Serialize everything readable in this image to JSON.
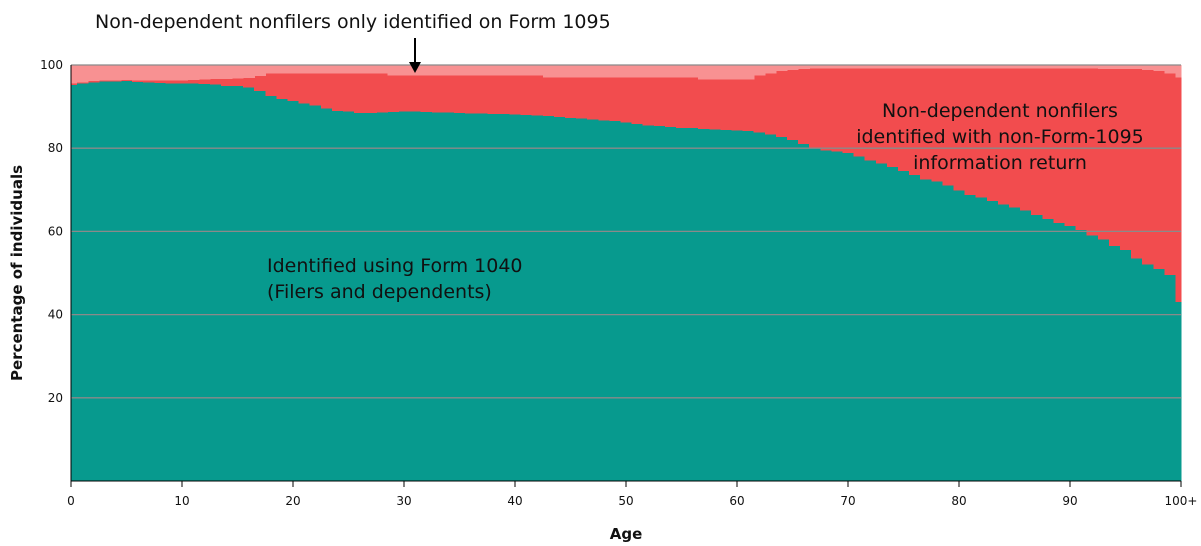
{
  "chart_data": {
    "type": "stacked-step-area",
    "annotation": "Non-dependent nonfilers only identified on Form 1095",
    "xlabel": "Age",
    "ylabel": "Percentage of individuals",
    "x": [
      0,
      1,
      2,
      3,
      4,
      5,
      6,
      7,
      8,
      9,
      10,
      11,
      12,
      13,
      14,
      15,
      16,
      17,
      18,
      19,
      20,
      21,
      22,
      23,
      24,
      25,
      26,
      27,
      28,
      29,
      30,
      31,
      32,
      33,
      34,
      35,
      36,
      37,
      38,
      39,
      40,
      41,
      42,
      43,
      44,
      45,
      46,
      47,
      48,
      49,
      50,
      51,
      52,
      53,
      54,
      55,
      56,
      57,
      58,
      59,
      60,
      61,
      62,
      63,
      64,
      65,
      66,
      67,
      68,
      69,
      70,
      71,
      72,
      73,
      74,
      75,
      76,
      77,
      78,
      79,
      80,
      81,
      82,
      83,
      84,
      85,
      86,
      87,
      88,
      89,
      90,
      91,
      92,
      93,
      94,
      95,
      96,
      97,
      98,
      99,
      100
    ],
    "series": [
      {
        "label": [
          "Identified using Form 1040",
          "(Filers and dependents)"
        ],
        "color": "#079a8e",
        "values": [
          95.2,
          95.5,
          95.8,
          96,
          96,
          96.1,
          95.9,
          95.8,
          95.7,
          95.6,
          95.5,
          95.5,
          95.4,
          95.3,
          95,
          94.9,
          94.6,
          93.8,
          92.5,
          91.8,
          91.3,
          90.8,
          90.3,
          89.6,
          89,
          88.8,
          88.5,
          88.5,
          88.6,
          88.7,
          88.8,
          88.8,
          88.7,
          88.6,
          88.6,
          88.5,
          88.4,
          88.3,
          88.2,
          88.2,
          88.1,
          88,
          87.9,
          87.7,
          87.5,
          87.3,
          87.1,
          86.9,
          86.7,
          86.5,
          86.2,
          85.8,
          85.5,
          85.3,
          85.1,
          84.9,
          84.8,
          84.6,
          84.5,
          84.4,
          84.3,
          84.1,
          83.8,
          83.3,
          82.7,
          82,
          81,
          80,
          79.5,
          79.2,
          78.8,
          78,
          77,
          76.3,
          75.5,
          74.5,
          73.5,
          72.5,
          72,
          71,
          69.8,
          68.8,
          68.2,
          67.3,
          66.5,
          65.8,
          65,
          64,
          63,
          62,
          61.3,
          60.3,
          59,
          58,
          56.5,
          55.5,
          53.5,
          52,
          51,
          49.5,
          43
        ]
      },
      {
        "label": [
          "Non-dependent nonfilers",
          "identified with non-Form-1095",
          "information return"
        ],
        "color": "#f24c4e",
        "values": [
          0.3,
          0.3,
          0.4,
          0.3,
          0.3,
          0.3,
          0.4,
          0.5,
          0.6,
          0.7,
          0.8,
          0.9,
          1.1,
          1.3,
          1.6,
          1.8,
          2.3,
          3.5,
          5.5,
          6.2,
          6.7,
          7.2,
          7.7,
          8.4,
          9,
          9.2,
          9.5,
          9.5,
          9.4,
          8.8,
          8.7,
          8.7,
          8.8,
          8.9,
          8.9,
          9,
          9.1,
          9.2,
          9.3,
          9.3,
          9.4,
          9.5,
          9.6,
          9.3,
          9.5,
          9.7,
          9.9,
          10.1,
          10.3,
          10.5,
          10.8,
          11.2,
          11.5,
          11.7,
          11.9,
          12.1,
          12.2,
          11.9,
          12,
          12.1,
          12.2,
          12.4,
          13.7,
          14.7,
          15.8,
          16.8,
          18,
          19.2,
          19.7,
          20,
          20.4,
          21.2,
          22.2,
          22.9,
          23.7,
          24.7,
          25.7,
          26.7,
          27.2,
          28.2,
          29.4,
          30.4,
          31,
          31.9,
          32.7,
          33.4,
          34.2,
          35.2,
          36.2,
          37.2,
          37.9,
          38.9,
          40.2,
          41,
          42.5,
          43.5,
          45.5,
          46.8,
          47.5,
          48.5,
          54
        ]
      },
      {
        "color": "#f89192",
        "values": [
          4.5,
          4.2,
          3.8,
          3.7,
          3.7,
          3.6,
          3.7,
          3.7,
          3.7,
          3.7,
          3.7,
          3.6,
          3.5,
          3.4,
          3.4,
          3.3,
          3.1,
          2.7,
          2,
          2,
          2,
          2,
          2,
          2,
          2,
          2,
          2,
          2,
          2,
          2.5,
          2.5,
          2.5,
          2.5,
          2.5,
          2.5,
          2.5,
          2.5,
          2.5,
          2.5,
          2.5,
          2.5,
          2.5,
          2.5,
          3,
          3,
          3,
          3,
          3,
          3,
          3,
          3,
          3,
          3,
          3,
          3,
          3,
          3,
          3.5,
          3.5,
          3.5,
          3.5,
          3.5,
          2.5,
          2,
          1.5,
          1.2,
          1,
          0.8,
          0.8,
          0.8,
          0.8,
          0.8,
          0.8,
          0.8,
          0.8,
          0.8,
          0.8,
          0.8,
          0.8,
          0.8,
          0.8,
          0.8,
          0.8,
          0.8,
          0.8,
          0.8,
          0.8,
          0.8,
          0.8,
          0.8,
          0.8,
          0.8,
          0.8,
          1,
          1,
          1,
          1,
          1.2,
          1.5,
          2,
          3
        ]
      }
    ],
    "xlim": [
      0,
      100
    ],
    "xticks": [
      0,
      10,
      20,
      30,
      40,
      50,
      60,
      70,
      80,
      90,
      {
        "value": 100,
        "label": "100+"
      }
    ],
    "ylim": [
      0,
      100
    ],
    "yticks": [
      20,
      40,
      60,
      80,
      100
    ],
    "grid": true,
    "grid_color": "#8a8a8a"
  }
}
